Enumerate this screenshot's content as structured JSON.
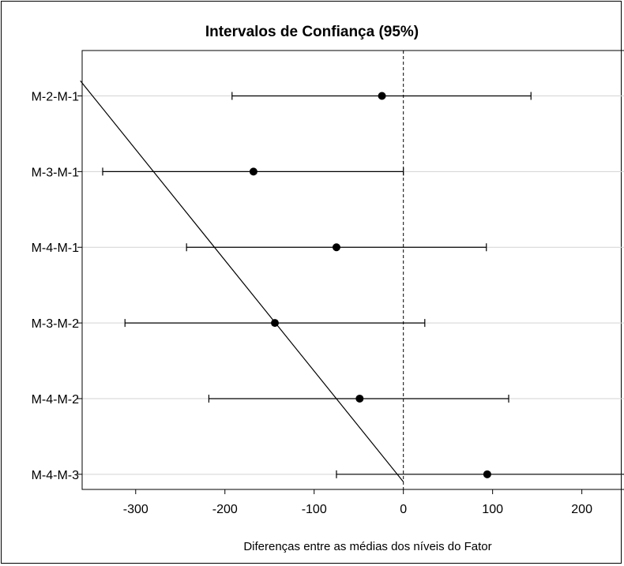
{
  "chart_data": {
    "type": "scatter",
    "title": "Intervalos de Confiança (95%)",
    "xlabel": "Diferenças entre as médias dos níveis do Fator",
    "ylabel": "",
    "xlim": [
      -360,
      280
    ],
    "x_ticks": [
      -300,
      -200,
      -100,
      0,
      100,
      200
    ],
    "x_tick_labels": [
      "-300",
      "-200",
      "-100",
      "0",
      "100",
      "200"
    ],
    "reference_line_x": 0,
    "grid": "horizontal",
    "categories": [
      "M-2-M-1",
      "M-3-M-1",
      "M-4-M-1",
      "M-3-M-2",
      "M-4-M-2",
      "M-4-M-3"
    ],
    "estimates": [
      -24,
      -168,
      -75,
      -144,
      -49,
      94
    ],
    "lower": [
      -192,
      -337,
      -243,
      -312,
      -218,
      -75
    ],
    "upper": [
      143,
      0,
      93,
      24,
      118,
      262
    ],
    "overlay_line": {
      "from": {
        "x": -362,
        "category_position": 0.8
      },
      "to": {
        "x": 0,
        "category_position": 6.1
      }
    }
  }
}
